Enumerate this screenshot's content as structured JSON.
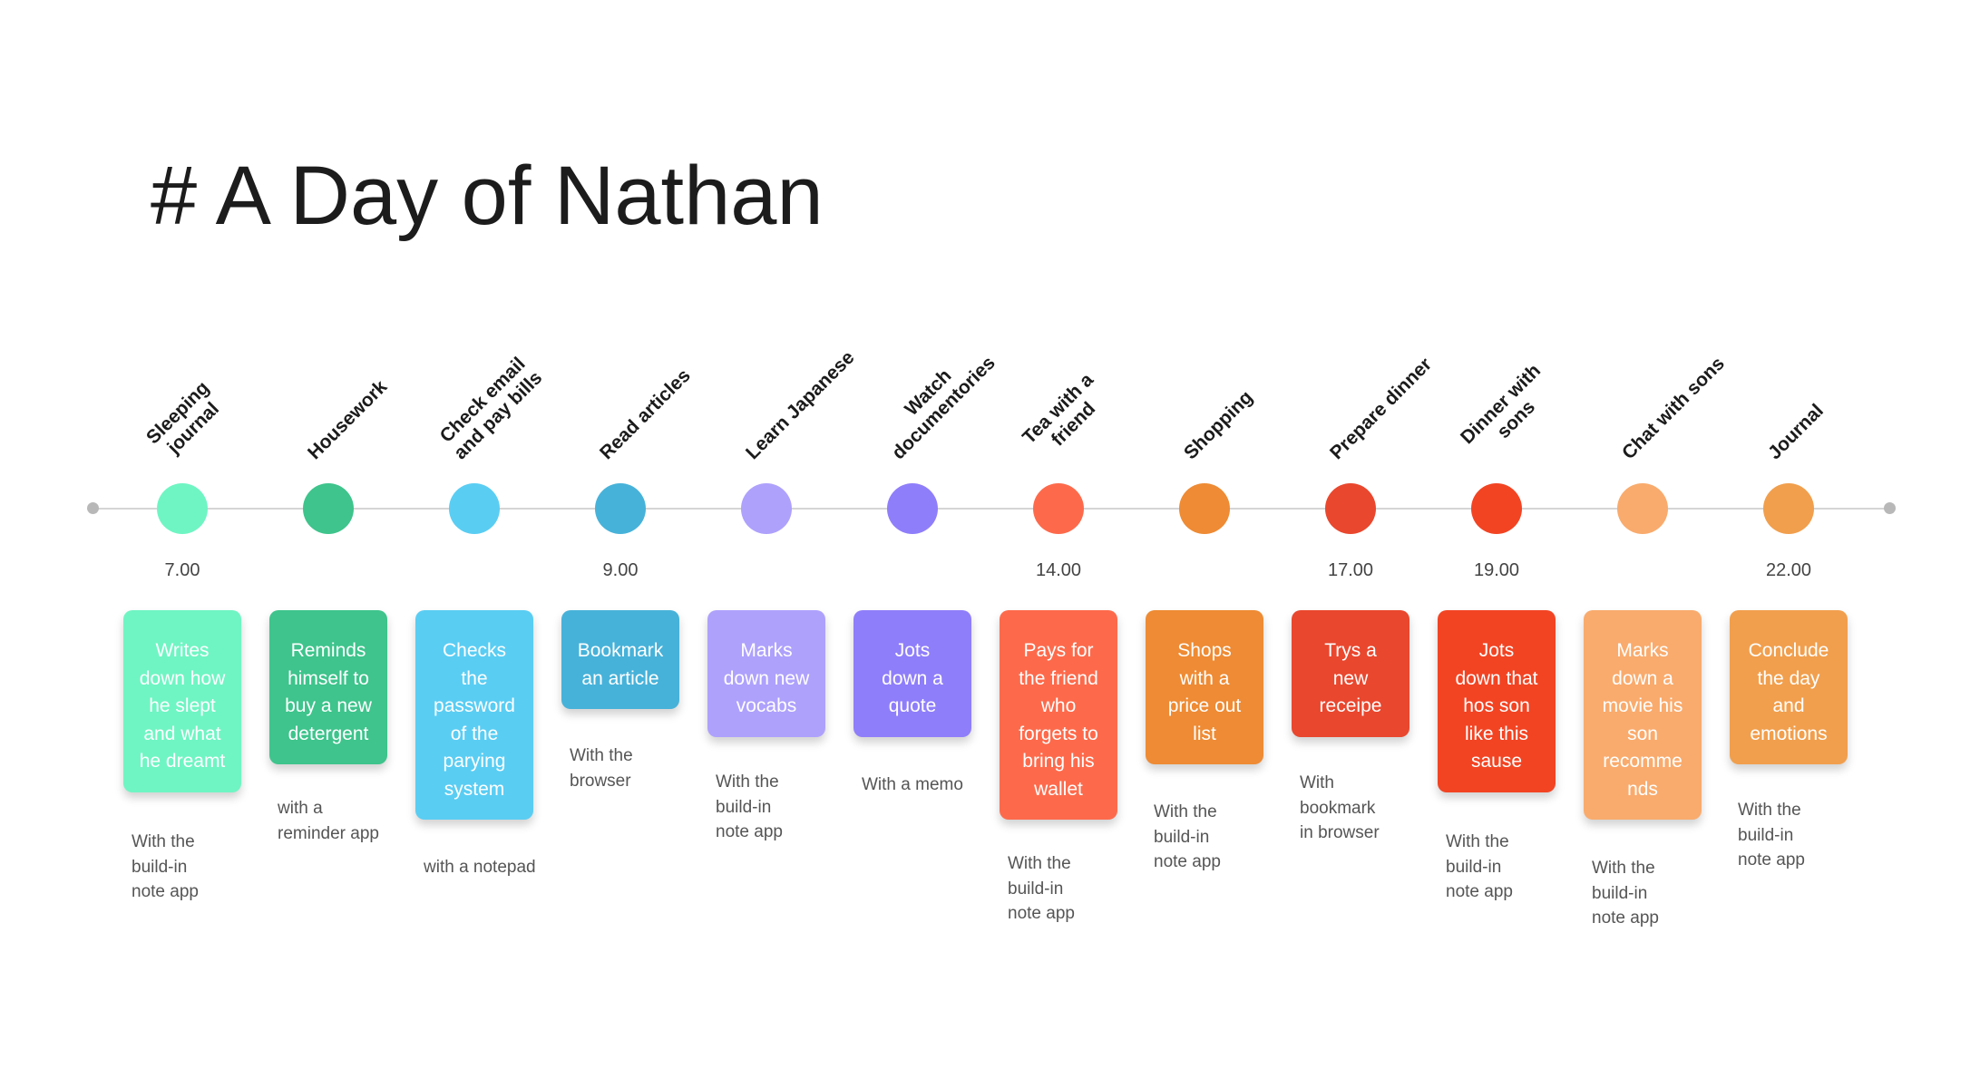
{
  "title": "# A Day of Nathan",
  "activities": [
    {
      "label": "Sleeping\njournal",
      "time": "7.00",
      "desc": "Writes\ndown how\nhe slept\nand what\nhe dreamt",
      "tool": "With the\nbuild-in\nnote app",
      "color": "#6ff5c3"
    },
    {
      "label": "Housework",
      "time": "",
      "desc": "Reminds\nhimself to\nbuy a new\ndetergent",
      "tool": "with a\nreminder app",
      "color": "#3ec48c"
    },
    {
      "label": "Check email\nand pay bills",
      "time": "",
      "desc": "Checks\nthe\npassword\nof the\nparying\nsystem",
      "tool": "with a notepad",
      "color": "#5acdf3"
    },
    {
      "label": "Read articles",
      "time": "9.00",
      "desc": "Bookmark\nan article",
      "tool": "With the\nbrowser",
      "color": "#47b2d9"
    },
    {
      "label": "Learn Japanese",
      "time": "",
      "desc": "Marks\ndown new\nvocabs",
      "tool": "With the\nbuild-in\nnote app",
      "color": "#aea1fc"
    },
    {
      "label": "Watch\ndocumentories",
      "time": "",
      "desc": "Jots\ndown a\nquote",
      "tool": "With a memo",
      "color": "#8f7efa"
    },
    {
      "label": "Tea with a\nfriend",
      "time": "14.00",
      "desc": "Pays for\nthe friend\nwho\nforgets to\nbring his\nwallet",
      "tool": "With the\nbuild-in\nnote app",
      "color": "#fd6a4b"
    },
    {
      "label": "Shopping",
      "time": "",
      "desc": "Shops\nwith a\nprice out\nlist",
      "tool": "With the\nbuild-in\nnote app",
      "color": "#ee8b34"
    },
    {
      "label": "Prepare dinner",
      "time": "17.00",
      "desc": "Trys a\nnew\nreceipe",
      "tool": "With\nbookmark\nin browser",
      "color": "#e9472e"
    },
    {
      "label": "Dinner with\nsons",
      "time": "19.00",
      "desc": "Jots\ndown that\nhos son\nlike this\nsause",
      "tool": "With the\nbuild-in\nnote app",
      "color": "#f24423"
    },
    {
      "label": "Chat with sons",
      "time": "",
      "desc": "Marks\ndown a\nmovie his\nson\nrecomme\nnds",
      "tool": "With the\nbuild-in\nnote app",
      "color": "#f9ab6d"
    },
    {
      "label": "Journal",
      "time": "22.00",
      "desc": "Conclude\nthe day\nand\nemotions",
      "tool": "With the\nbuild-in\nnote app",
      "color": "#f19f4d"
    }
  ]
}
